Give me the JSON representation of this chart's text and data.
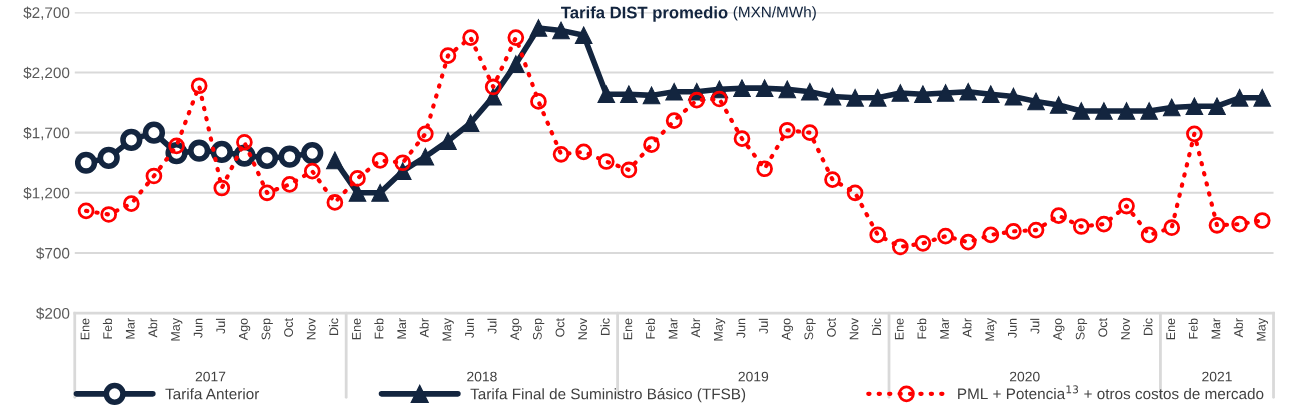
{
  "chart_data": {
    "type": "line",
    "title": "Tarifa DIST promedio",
    "subtitle": "(MXN/MWh)",
    "categories": [
      "Ene",
      "Feb",
      "Mar",
      "Abr",
      "May",
      "Jun",
      "Jul",
      "Ago",
      "Sep",
      "Oct",
      "Nov",
      "Dic",
      "Ene",
      "Feb",
      "Mar",
      "Abr",
      "May",
      "Jun",
      "Jul",
      "Ago",
      "Sep",
      "Oct",
      "Nov",
      "Dic",
      "Ene",
      "Feb",
      "Mar",
      "Abr",
      "May",
      "Jun",
      "Jul",
      "Ago",
      "Sep",
      "Oct",
      "Nov",
      "Dic",
      "Ene",
      "Feb",
      "Mar",
      "Abr",
      "May",
      "Jun",
      "Jul",
      "Ago",
      "Sep",
      "Oct",
      "Nov",
      "Dic",
      "Ene",
      "Feb",
      "Mar",
      "Abr",
      "May"
    ],
    "annotations": [
      "2017",
      "2018",
      "2019",
      "2020",
      "2021"
    ],
    "series": [
      {
        "name": "Tarifa Anterior",
        "color": "#13253f",
        "marker": "circle",
        "line_style": "solid",
        "values": [
          1450,
          1490,
          1640,
          1700,
          1530,
          1550,
          1540,
          1510,
          1490,
          1500,
          1530,
          null,
          null,
          null,
          null,
          null,
          null,
          null,
          null,
          null,
          null,
          null,
          null,
          null,
          null,
          null,
          null,
          null,
          null,
          null,
          null,
          null,
          null,
          null,
          null,
          null,
          null,
          null,
          null,
          null,
          null,
          null,
          null,
          null,
          null,
          null,
          null,
          null,
          null,
          null,
          null,
          null,
          null
        ]
      },
      {
        "name": "Tarifa Final de Suministro Básico (TFSB)",
        "color": "#13253f",
        "marker": "triangle",
        "line_style": "solid",
        "values": [
          null,
          null,
          null,
          null,
          null,
          null,
          null,
          null,
          null,
          null,
          null,
          1470,
          1200,
          1200,
          1380,
          1500,
          1630,
          1780,
          2000,
          2270,
          2570,
          2550,
          2510,
          2020,
          2020,
          2010,
          2040,
          2040,
          2060,
          2070,
          2070,
          2060,
          2040,
          2000,
          1990,
          1990,
          2030,
          2020,
          2030,
          2040,
          2020,
          2000,
          1960,
          1930,
          1880,
          1880,
          1880,
          1880,
          1910,
          1920,
          1920,
          1990,
          1990
        ]
      },
      {
        "name": "PML + Potencia$^{13}$ + otros costos de mercado",
        "color": "#ff0000",
        "marker": "circle",
        "line_style": "dotted",
        "values": [
          1050,
          1020,
          1110,
          1340,
          1590,
          2090,
          1240,
          1620,
          1200,
          1270,
          1380,
          1120,
          1320,
          1470,
          1450,
          1690,
          2340,
          2490,
          2080,
          2490,
          1960,
          1520,
          1540,
          1460,
          1390,
          1600,
          1800,
          1970,
          1980,
          1650,
          1400,
          1720,
          1700,
          1310,
          1200,
          850,
          750,
          780,
          840,
          790,
          850,
          880,
          890,
          1010,
          920,
          940,
          1090,
          850,
          910,
          1690,
          930,
          940,
          970
        ]
      }
    ],
    "ylim": [
      200,
      2700
    ],
    "yticks": [
      {
        "value": 200,
        "label": "$200"
      },
      {
        "value": 700,
        "label": "$700"
      },
      {
        "value": 1200,
        "label": "$1,200"
      },
      {
        "value": 1700,
        "label": "$1,700"
      },
      {
        "value": 2200,
        "label": "$2,200"
      },
      {
        "value": 2700,
        "label": "$2,700"
      }
    ],
    "grid": "y",
    "legend": "bottom"
  }
}
